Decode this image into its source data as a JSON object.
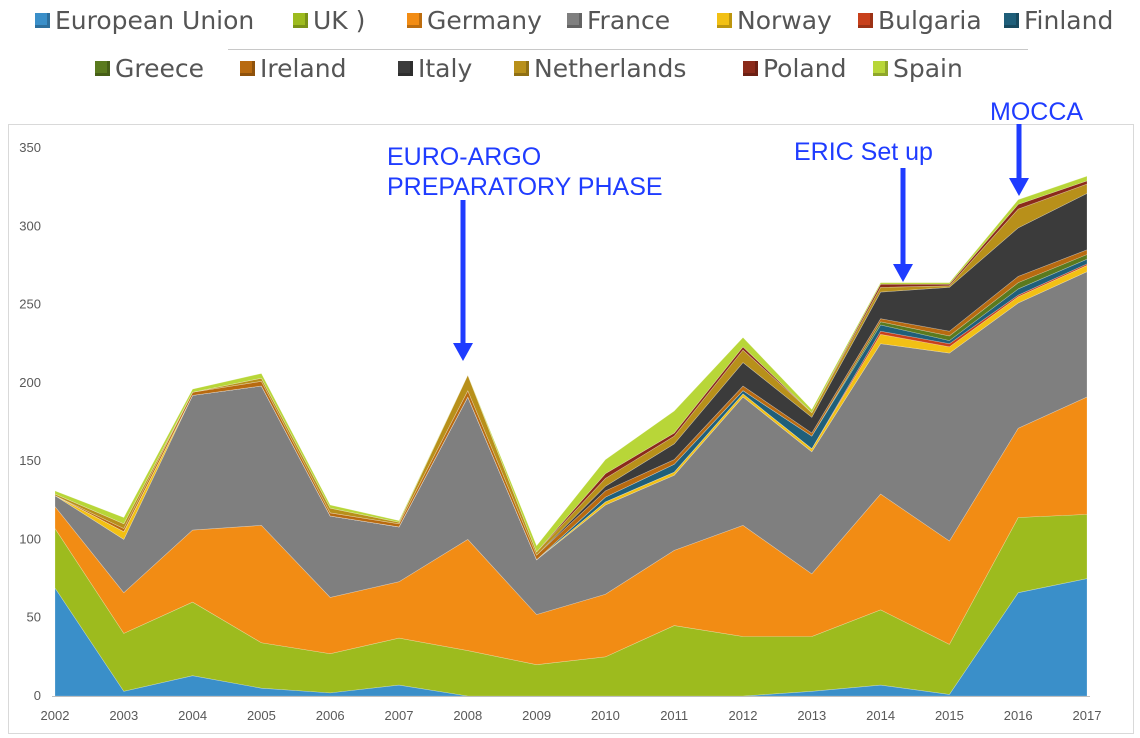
{
  "chart_data": {
    "type": "area",
    "stacked": true,
    "x": [
      "2002",
      "2003",
      "2004",
      "2005",
      "2006",
      "2007",
      "2008",
      "2009",
      "2010",
      "2011",
      "2012",
      "2013",
      "2014",
      "2015",
      "2016",
      "2017"
    ],
    "ylim": [
      0,
      350
    ],
    "yticks": [
      0,
      50,
      100,
      150,
      200,
      250,
      300,
      350
    ],
    "grid": false,
    "legend_position": "top",
    "series": [
      {
        "name": "European Union",
        "color": "#3a8fc9",
        "values": [
          69,
          3,
          13,
          5,
          2,
          7,
          0,
          0,
          0,
          0,
          0,
          3,
          7,
          1,
          66,
          75
        ]
      },
      {
        "name": "UK )",
        "color": "#9dbb1e",
        "values": [
          38,
          37,
          47,
          29,
          25,
          30,
          29,
          20,
          25,
          45,
          38,
          35,
          48,
          32,
          48,
          41
        ]
      },
      {
        "name": "Germany",
        "color": "#f28c14",
        "values": [
          14,
          26,
          46,
          75,
          36,
          36,
          71,
          32,
          40,
          48,
          71,
          40,
          74,
          66,
          57,
          75
        ]
      },
      {
        "name": "France",
        "color": "#7f7f7f",
        "values": [
          7,
          34,
          86,
          89,
          52,
          35,
          91,
          35,
          57,
          48,
          82,
          78,
          96,
          120,
          80,
          80
        ]
      },
      {
        "name": "Norway",
        "color": "#f2c014",
        "values": [
          0,
          5,
          0,
          0,
          0,
          0,
          0,
          0,
          2,
          2,
          2,
          2,
          6,
          4,
          4,
          4
        ]
      },
      {
        "name": "Bulgaria",
        "color": "#c8401b",
        "values": [
          0,
          0,
          0,
          0,
          0,
          0,
          0,
          0,
          0,
          0,
          0,
          0,
          2,
          2,
          1,
          1
        ]
      },
      {
        "name": "Finland",
        "color": "#1f5f7a",
        "values": [
          0,
          0,
          0,
          0,
          0,
          0,
          0,
          0,
          3,
          5,
          2,
          8,
          4,
          2,
          4,
          3
        ]
      },
      {
        "name": "Greece",
        "color": "#5a7a1e",
        "values": [
          0,
          0,
          0,
          0,
          0,
          0,
          0,
          0,
          0,
          0,
          0,
          0,
          2,
          3,
          4,
          3
        ]
      },
      {
        "name": "Ireland",
        "color": "#b86a10",
        "values": [
          0,
          2,
          2,
          3,
          2,
          2,
          4,
          3,
          4,
          3,
          3,
          2,
          2,
          3,
          4,
          3
        ]
      },
      {
        "name": "Italy",
        "color": "#3b3b3b",
        "values": [
          0,
          0,
          0,
          0,
          0,
          0,
          0,
          0,
          3,
          10,
          15,
          10,
          17,
          28,
          31,
          36
        ]
      },
      {
        "name": "Netherlands",
        "color": "#b8901a",
        "values": [
          1,
          3,
          0,
          2,
          3,
          1,
          10,
          2,
          5,
          5,
          8,
          3,
          3,
          1,
          12,
          6
        ]
      },
      {
        "name": "Poland",
        "color": "#8b2a1a",
        "values": [
          0,
          0,
          0,
          0,
          0,
          0,
          0,
          0,
          3,
          2,
          2,
          0,
          2,
          1,
          3,
          2
        ]
      },
      {
        "name": "Spain",
        "color": "#b8d638",
        "values": [
          2,
          4,
          2,
          3,
          2,
          1,
          0,
          4,
          9,
          14,
          6,
          2,
          1,
          1,
          3,
          3
        ]
      }
    ],
    "annotations": [
      {
        "lines": [
          "EURO-ARGO",
          "PREPARATORY PHASE"
        ],
        "x": "2008"
      },
      {
        "lines": [
          "ERIC Set up"
        ],
        "x": "2014"
      },
      {
        "lines": [
          "MOCCA"
        ],
        "x": "2016"
      }
    ],
    "title": "",
    "xlabel": "",
    "ylabel": ""
  }
}
